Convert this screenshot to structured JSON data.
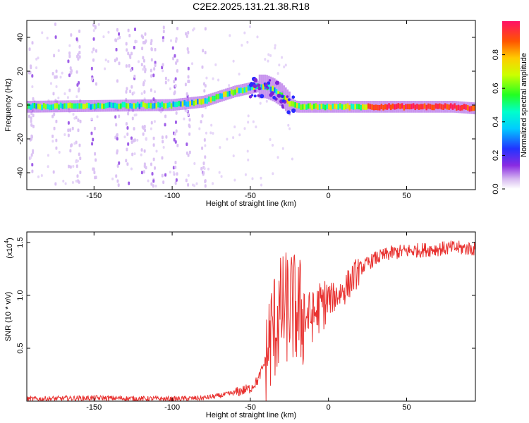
{
  "title": "C2E2.2025.131.21.38.R18",
  "chart_data": [
    {
      "type": "heatmap",
      "name": "spectrogram",
      "xlabel": "Height of straight line (km)",
      "ylabel": "Frequency (Hz)",
      "xlim": [
        -193,
        94
      ],
      "ylim": [
        -50,
        50
      ],
      "xticks": [
        -150,
        -100,
        -50,
        0,
        50
      ],
      "yticks": [
        -40,
        -20,
        0,
        20,
        40
      ],
      "colorbar": {
        "label": "Normalized spectral amplitude",
        "range": [
          0,
          1
        ],
        "ticks": [
          "0.0",
          "0.2",
          "0.4",
          "0.6",
          "0.8"
        ],
        "tick_values": [
          0,
          0.2,
          0.4,
          0.6,
          0.8
        ]
      },
      "ridge": {
        "x": [
          -193,
          -100,
          -80,
          -70,
          -60,
          -50,
          -45,
          -40,
          -35,
          -30,
          -25,
          -20,
          -10,
          0,
          20,
          50,
          80,
          94
        ],
        "y": [
          -1,
          0,
          2,
          5,
          8,
          10,
          11,
          11,
          9,
          6,
          1,
          -1,
          -1,
          -1,
          -1,
          -1,
          -1,
          -2
        ]
      }
    },
    {
      "type": "line",
      "name": "snr",
      "xlabel": "Height of straight line (km)",
      "ylabel": "SNR (10 * v/v)",
      "yscale_label": "(x10",
      "yscale_exp": "4",
      "xlim": [
        -193,
        94
      ],
      "ylim": [
        0,
        1.6
      ],
      "xticks": [
        -150,
        -100,
        -50,
        0,
        50
      ],
      "yticks": [
        0.5,
        1.0,
        1.5
      ],
      "ytick_labels": [
        "0.5",
        "1.0",
        "1.5"
      ],
      "color": "#e8312f",
      "series": {
        "x": [
          -193,
          -150,
          -100,
          -80,
          -70,
          -60,
          -50,
          -45,
          -40,
          -38,
          -35,
          -30,
          -25,
          -20,
          -15,
          -10,
          -5,
          0,
          5,
          10,
          15,
          20,
          25,
          30,
          40,
          50,
          60,
          70,
          80,
          94
        ],
        "y": [
          0.02,
          0.03,
          0.02,
          0.03,
          0.05,
          0.08,
          0.12,
          0.2,
          0.4,
          0.55,
          0.7,
          0.85,
          0.9,
          0.85,
          0.8,
          0.8,
          0.9,
          0.95,
          1.0,
          1.05,
          1.15,
          1.25,
          1.3,
          1.35,
          1.4,
          1.42,
          1.43,
          1.44,
          1.45,
          1.44
        ]
      }
    }
  ]
}
